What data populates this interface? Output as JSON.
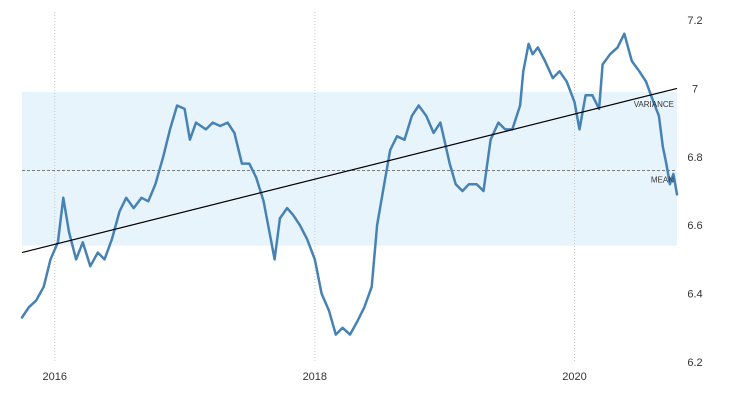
{
  "chart_data": {
    "type": "line",
    "title": "",
    "xlabel": "",
    "ylabel": "",
    "xlim": [
      "2015-10-01",
      "2020-10-15"
    ],
    "ylim": [
      6.2,
      7.2
    ],
    "x_ticks": [
      {
        "label": "2016",
        "date": "2016-01-01"
      },
      {
        "label": "2018",
        "date": "2018-01-01"
      },
      {
        "label": "2020",
        "date": "2020-01-01"
      }
    ],
    "y_ticks": [
      {
        "label": "7.2",
        "value": 7.2
      },
      {
        "label": "7",
        "value": 7.0
      },
      {
        "label": "6.8",
        "value": 6.8
      },
      {
        "label": "6.6",
        "value": 6.6
      },
      {
        "label": "6.4",
        "value": 6.4
      },
      {
        "label": "6.2",
        "value": 6.2
      }
    ],
    "grid": "vertical dotted",
    "y_axis_side": "right",
    "series": [
      {
        "color": "#4682b4",
        "points": [
          [
            "2015-10-01",
            6.33
          ],
          [
            "2015-10-20",
            6.36
          ],
          [
            "2015-11-10",
            6.38
          ],
          [
            "2015-12-01",
            6.42
          ],
          [
            "2015-12-20",
            6.5
          ],
          [
            "2016-01-10",
            6.55
          ],
          [
            "2016-01-25",
            6.68
          ],
          [
            "2016-02-10",
            6.58
          ],
          [
            "2016-03-01",
            6.5
          ],
          [
            "2016-03-20",
            6.55
          ],
          [
            "2016-04-10",
            6.48
          ],
          [
            "2016-05-01",
            6.52
          ],
          [
            "2016-05-20",
            6.5
          ],
          [
            "2016-06-10",
            6.56
          ],
          [
            "2016-07-01",
            6.64
          ],
          [
            "2016-07-20",
            6.68
          ],
          [
            "2016-08-10",
            6.65
          ],
          [
            "2016-09-01",
            6.68
          ],
          [
            "2016-09-20",
            6.67
          ],
          [
            "2016-10-10",
            6.72
          ],
          [
            "2016-11-01",
            6.8
          ],
          [
            "2016-11-20",
            6.88
          ],
          [
            "2016-12-10",
            6.95
          ],
          [
            "2016-12-31",
            6.94
          ],
          [
            "2017-01-15",
            6.85
          ],
          [
            "2017-02-01",
            6.9
          ],
          [
            "2017-03-01",
            6.88
          ],
          [
            "2017-03-20",
            6.9
          ],
          [
            "2017-04-10",
            6.89
          ],
          [
            "2017-05-01",
            6.9
          ],
          [
            "2017-05-20",
            6.87
          ],
          [
            "2017-06-10",
            6.78
          ],
          [
            "2017-07-01",
            6.78
          ],
          [
            "2017-07-20",
            6.74
          ],
          [
            "2017-08-10",
            6.67
          ],
          [
            "2017-09-01",
            6.55
          ],
          [
            "2017-09-10",
            6.5
          ],
          [
            "2017-09-25",
            6.62
          ],
          [
            "2017-10-15",
            6.65
          ],
          [
            "2017-11-01",
            6.63
          ],
          [
            "2017-11-20",
            6.6
          ],
          [
            "2017-12-10",
            6.56
          ],
          [
            "2018-01-01",
            6.5
          ],
          [
            "2018-01-20",
            6.4
          ],
          [
            "2018-02-10",
            6.35
          ],
          [
            "2018-03-01",
            6.28
          ],
          [
            "2018-03-20",
            6.3
          ],
          [
            "2018-04-10",
            6.28
          ],
          [
            "2018-05-01",
            6.32
          ],
          [
            "2018-05-20",
            6.36
          ],
          [
            "2018-06-10",
            6.42
          ],
          [
            "2018-06-25",
            6.6
          ],
          [
            "2018-07-15",
            6.72
          ],
          [
            "2018-08-01",
            6.82
          ],
          [
            "2018-08-20",
            6.86
          ],
          [
            "2018-09-10",
            6.85
          ],
          [
            "2018-10-01",
            6.92
          ],
          [
            "2018-10-20",
            6.95
          ],
          [
            "2018-11-10",
            6.92
          ],
          [
            "2018-12-01",
            6.87
          ],
          [
            "2018-12-20",
            6.9
          ],
          [
            "2019-01-15",
            6.78
          ],
          [
            "2019-02-01",
            6.72
          ],
          [
            "2019-02-20",
            6.7
          ],
          [
            "2019-03-10",
            6.72
          ],
          [
            "2019-04-01",
            6.72
          ],
          [
            "2019-04-20",
            6.7
          ],
          [
            "2019-05-10",
            6.85
          ],
          [
            "2019-06-01",
            6.9
          ],
          [
            "2019-06-20",
            6.88
          ],
          [
            "2019-07-10",
            6.88
          ],
          [
            "2019-08-01",
            6.95
          ],
          [
            "2019-08-10",
            7.05
          ],
          [
            "2019-08-25",
            7.13
          ],
          [
            "2019-09-05",
            7.1
          ],
          [
            "2019-09-20",
            7.12
          ],
          [
            "2019-10-10",
            7.08
          ],
          [
            "2019-11-01",
            7.03
          ],
          [
            "2019-11-20",
            7.05
          ],
          [
            "2019-12-10",
            7.02
          ],
          [
            "2020-01-01",
            6.96
          ],
          [
            "2020-01-15",
            6.88
          ],
          [
            "2020-02-01",
            6.98
          ],
          [
            "2020-02-20",
            6.98
          ],
          [
            "2020-03-10",
            6.94
          ],
          [
            "2020-03-20",
            7.07
          ],
          [
            "2020-04-10",
            7.1
          ],
          [
            "2020-05-01",
            7.12
          ],
          [
            "2020-05-20",
            7.16
          ],
          [
            "2020-06-10",
            7.08
          ],
          [
            "2020-07-01",
            7.05
          ],
          [
            "2020-07-20",
            7.02
          ],
          [
            "2020-08-10",
            6.96
          ],
          [
            "2020-08-25",
            6.92
          ],
          [
            "2020-09-05",
            6.83
          ],
          [
            "2020-09-15",
            6.78
          ],
          [
            "2020-09-25",
            6.72
          ],
          [
            "2020-10-05",
            6.75
          ],
          [
            "2020-10-15",
            6.69
          ]
        ]
      }
    ],
    "mean": {
      "label": "MEAN",
      "value": 6.76
    },
    "variance_band": {
      "label": "VARIANCE",
      "low": 6.54,
      "high": 6.99,
      "color": "#e8f4fc"
    },
    "trend_line": {
      "start": [
        "2015-10-01",
        6.52
      ],
      "end": [
        "2020-10-15",
        7.0
      ],
      "color": "#000000"
    }
  }
}
